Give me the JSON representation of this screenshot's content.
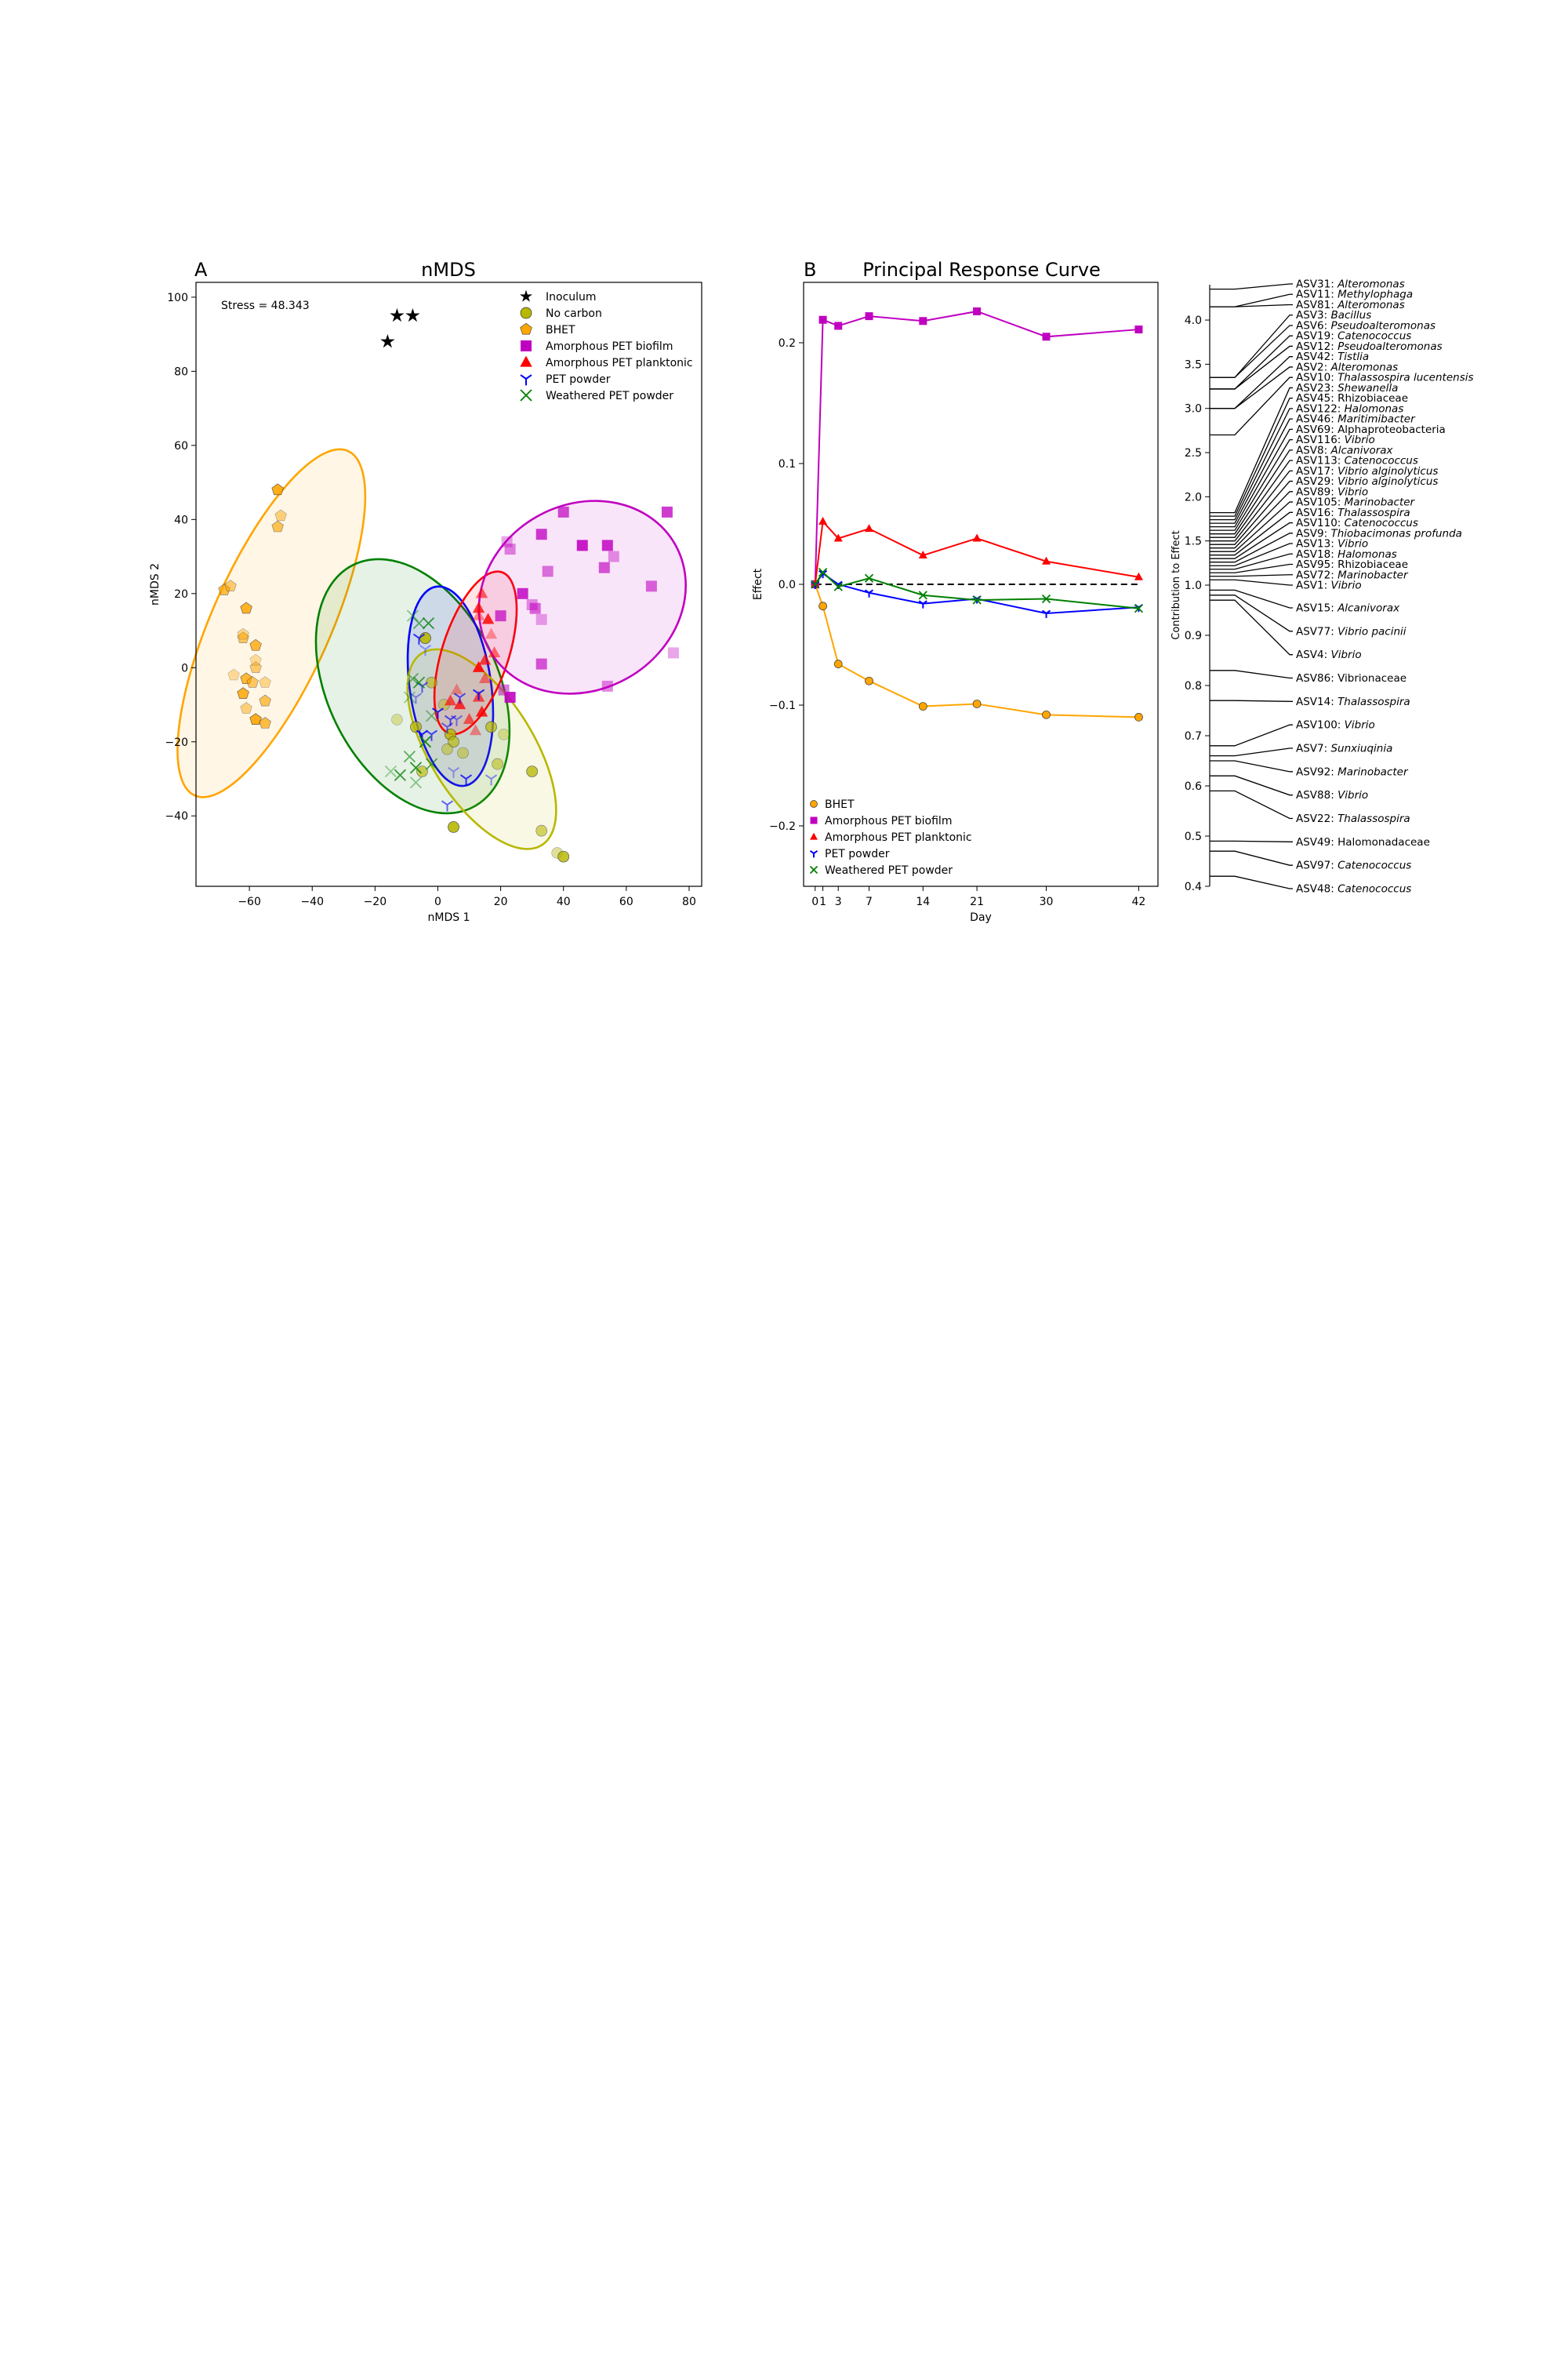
{
  "panel_a": {
    "letter": "A",
    "title": "nMDS",
    "stress": "Stress = 48.343",
    "legend": [
      {
        "label": "Inoculum",
        "marker": "star",
        "color": "#000000"
      },
      {
        "label": "No carbon",
        "marker": "circle",
        "color": "#b8b800"
      },
      {
        "label": "BHET",
        "marker": "pentagon",
        "color": "#ffa500"
      },
      {
        "label": "Amorphous PET biofilm",
        "marker": "square",
        "color": "#c000c0"
      },
      {
        "label": "Amorphous PET planktonic",
        "marker": "triangle",
        "color": "#ff0000"
      },
      {
        "label": "PET powder",
        "marker": "tri",
        "color": "#0000ff"
      },
      {
        "label": "Weathered PET powder",
        "marker": "x",
        "color": "#008000"
      }
    ]
  },
  "panel_b": {
    "letter": "B",
    "title": "Principal Response Curve",
    "legend": [
      {
        "label": "BHET",
        "marker": "circle",
        "color": "#ffa500"
      },
      {
        "label": "Amorphous PET biofilm",
        "marker": "square",
        "color": "#c000c0"
      },
      {
        "label": "Amorphous PET planktonic",
        "marker": "triangle",
        "color": "#ff0000"
      },
      {
        "label": "PET powder",
        "marker": "tri",
        "color": "#0000ff"
      },
      {
        "label": "Weathered PET powder",
        "marker": "x",
        "color": "#008000"
      }
    ]
  },
  "panel_c": {
    "ylabel": "Contribution to Effect",
    "ylim": [
      0.4,
      4.4
    ],
    "yticks": [
      0.4,
      0.5,
      0.6,
      0.7,
      0.8,
      0.9,
      1.0,
      1.5,
      2.0,
      2.5,
      3.0,
      3.5,
      4.0
    ],
    "note": "broken axis: lower segment 0.4-1.0, upper segment 1.0-4.4",
    "taxa": [
      {
        "asv": "ASV31:",
        "name": "Alteromonas",
        "italic": true,
        "value": 4.35
      },
      {
        "asv": "ASV11:",
        "name": "Methylophaga",
        "italic": true,
        "value": 4.15
      },
      {
        "asv": "ASV81:",
        "name": "Alteromonas",
        "italic": true,
        "value": 4.15
      },
      {
        "asv": "ASV3:",
        "name": "Bacillus",
        "italic": true,
        "value": 3.35
      },
      {
        "asv": "ASV6:",
        "name": "Pseudoalteromonas",
        "italic": true,
        "value": 3.35
      },
      {
        "asv": "ASV19:",
        "name": "Catenococcus",
        "italic": true,
        "value": 3.22
      },
      {
        "asv": "ASV12:",
        "name": "Pseudoalteromonas",
        "italic": true,
        "value": 3.22
      },
      {
        "asv": "ASV42:",
        "name": "Tistlia",
        "italic": true,
        "value": 3.0
      },
      {
        "asv": "ASV2:",
        "name": "Alteromonas",
        "italic": true,
        "value": 3.0
      },
      {
        "asv": "ASV10:",
        "name": "Thalassospira lucentensis",
        "italic": true,
        "value": 2.7
      },
      {
        "asv": "ASV23:",
        "name": "Shewanella",
        "italic": true,
        "value": 1.82
      },
      {
        "asv": "ASV45:",
        "name": "Rhizobiaceae",
        "italic": false,
        "value": 1.78
      },
      {
        "asv": "ASV122:",
        "name": "Halomonas",
        "italic": true,
        "value": 1.74
      },
      {
        "asv": "ASV46:",
        "name": "Maritimibacter",
        "italic": true,
        "value": 1.7
      },
      {
        "asv": "ASV69:",
        "name": "Alphaproteobacteria",
        "italic": false,
        "value": 1.66
      },
      {
        "asv": "ASV116:",
        "name": "Vibrio",
        "italic": true,
        "value": 1.62
      },
      {
        "asv": "ASV8:",
        "name": "Alcanivorax",
        "italic": true,
        "value": 1.58
      },
      {
        "asv": "ASV113:",
        "name": "Catenococcus",
        "italic": true,
        "value": 1.54
      },
      {
        "asv": "ASV17:",
        "name": "Vibrio alginolyticus",
        "italic": true,
        "value": 1.5
      },
      {
        "asv": "ASV29:",
        "name": "Vibrio alginolyticus",
        "italic": true,
        "value": 1.46
      },
      {
        "asv": "ASV89:",
        "name": "Vibrio",
        "italic": true,
        "value": 1.42
      },
      {
        "asv": "ASV105:",
        "name": "Marinobacter",
        "italic": true,
        "value": 1.38
      },
      {
        "asv": "ASV16:",
        "name": "Thalassospira",
        "italic": true,
        "value": 1.34
      },
      {
        "asv": "ASV110:",
        "name": "Catenococcus",
        "italic": true,
        "value": 1.3
      },
      {
        "asv": "ASV9:",
        "name": "Thiobacimonas profunda",
        "italic": true,
        "value": 1.26
      },
      {
        "asv": "ASV13:",
        "name": "Vibrio",
        "italic": true,
        "value": 1.22
      },
      {
        "asv": "ASV18:",
        "name": "Halomonas",
        "italic": true,
        "value": 1.18
      },
      {
        "asv": "ASV95:",
        "name": "Rhizobiaceae",
        "italic": false,
        "value": 1.14
      },
      {
        "asv": "ASV72:",
        "name": "Marinobacter",
        "italic": true,
        "value": 1.1
      },
      {
        "asv": "ASV1:",
        "name": "Vibrio",
        "italic": true,
        "value": 1.06
      },
      {
        "asv": "ASV15:",
        "name": "Alcanivorax",
        "italic": true,
        "value": 0.99
      },
      {
        "asv": "ASV77:",
        "name": "Vibrio pacinii",
        "italic": true,
        "value": 0.98
      },
      {
        "asv": "ASV4:",
        "name": "Vibrio",
        "italic": true,
        "value": 0.97
      },
      {
        "asv": "ASV86:",
        "name": "Vibrionaceae",
        "italic": false,
        "value": 0.83
      },
      {
        "asv": "ASV14:",
        "name": "Thalassospira",
        "italic": true,
        "value": 0.77
      },
      {
        "asv": "ASV100:",
        "name": "Vibrio",
        "italic": true,
        "value": 0.68
      },
      {
        "asv": "ASV7:",
        "name": "Sunxiuqinia",
        "italic": true,
        "value": 0.66
      },
      {
        "asv": "ASV92:",
        "name": "Marinobacter",
        "italic": true,
        "value": 0.65
      },
      {
        "asv": "ASV88:",
        "name": "Vibrio",
        "italic": true,
        "value": 0.62
      },
      {
        "asv": "ASV22:",
        "name": "Thalassospira",
        "italic": true,
        "value": 0.59
      },
      {
        "asv": "ASV49:",
        "name": "Halomonadaceae",
        "italic": false,
        "value": 0.49
      },
      {
        "asv": "ASV97:",
        "name": "Catenococcus",
        "italic": true,
        "value": 0.47
      },
      {
        "asv": "ASV48:",
        "name": "Catenococcus",
        "italic": true,
        "value": 0.42
      }
    ]
  },
  "chart_data": [
    {
      "type": "scatter",
      "title": "nMDS",
      "xlabel": "nMDS 1",
      "ylabel": "nMDS 2",
      "xlim": [
        -77,
        84
      ],
      "ylim": [
        -59,
        104
      ],
      "xticks": [
        -60,
        -40,
        -20,
        0,
        20,
        40,
        60,
        80
      ],
      "yticks": [
        -40,
        -20,
        0,
        20,
        40,
        60,
        80,
        100
      ],
      "annotation": "Stress = 48.343",
      "series": [
        {
          "name": "Inoculum",
          "color": "#000000",
          "marker": "star",
          "points": [
            [
              -13,
              95
            ],
            [
              -8,
              95
            ],
            [
              -16,
              88
            ]
          ]
        },
        {
          "name": "No carbon",
          "color": "#b8b800",
          "marker": "circle",
          "points": [
            [
              -13,
              -14
            ],
            [
              -7,
              -16
            ],
            [
              -2,
              -4
            ],
            [
              2,
              -10
            ],
            [
              4,
              -18
            ],
            [
              5,
              -20
            ],
            [
              3,
              -22
            ],
            [
              5,
              -43
            ],
            [
              17,
              -16
            ],
            [
              19,
              -26
            ],
            [
              21,
              -18
            ],
            [
              30,
              -28
            ],
            [
              33,
              -44
            ],
            [
              38,
              -50
            ],
            [
              40,
              -51
            ],
            [
              -5,
              -28
            ],
            [
              8,
              -23
            ],
            [
              -4,
              8
            ]
          ]
        },
        {
          "name": "BHET",
          "color": "#ffa500",
          "marker": "pentagon",
          "points": [
            [
              -65,
              -2
            ],
            [
              -61,
              -3
            ],
            [
              -59,
              -4
            ],
            [
              -55,
              -4
            ],
            [
              -62,
              -7
            ],
            [
              -55,
              -9
            ],
            [
              -61,
              -11
            ],
            [
              -58,
              -14
            ],
            [
              -55,
              -15
            ],
            [
              -58,
              0
            ],
            [
              -58,
              2
            ],
            [
              -58,
              6
            ],
            [
              -62,
              8
            ],
            [
              -62,
              9
            ],
            [
              -61,
              16
            ],
            [
              -51,
              38
            ],
            [
              -50,
              41
            ],
            [
              -51,
              48
            ],
            [
              -68,
              21
            ],
            [
              -66,
              22
            ]
          ]
        },
        {
          "name": "Amorphous PET biofilm",
          "color": "#c000c0",
          "marker": "square",
          "points": [
            [
              75,
              4
            ],
            [
              73,
              42
            ],
            [
              68,
              22
            ],
            [
              56,
              30
            ],
            [
              54,
              33
            ],
            [
              53,
              27
            ],
            [
              54,
              -5
            ],
            [
              46,
              33
            ],
            [
              40,
              42
            ],
            [
              35,
              26
            ],
            [
              33,
              13
            ],
            [
              33,
              36
            ],
            [
              31,
              16
            ],
            [
              30,
              17
            ],
            [
              27,
              20
            ],
            [
              33,
              1
            ],
            [
              23,
              32
            ],
            [
              23,
              -8
            ],
            [
              20,
              14
            ],
            [
              21,
              -6
            ],
            [
              22,
              34
            ]
          ]
        },
        {
          "name": "Amorphous PET planktonic",
          "color": "#ff0000",
          "marker": "triangle",
          "points": [
            [
              6,
              -6
            ],
            [
              7,
              -10
            ],
            [
              10,
              -14
            ],
            [
              12,
              -17
            ],
            [
              14,
              -12
            ],
            [
              13,
              -8
            ],
            [
              15,
              -3
            ],
            [
              13,
              0
            ],
            [
              15,
              2
            ],
            [
              18,
              4
            ],
            [
              17,
              9
            ],
            [
              13,
              16
            ],
            [
              14,
              20
            ],
            [
              13,
              14
            ],
            [
              16,
              13
            ],
            [
              4,
              -9
            ]
          ]
        },
        {
          "name": "PET powder",
          "color": "#0000ff",
          "marker": "tri",
          "points": [
            [
              -4,
              5
            ],
            [
              -6,
              8
            ],
            [
              -5,
              -5
            ],
            [
              -7,
              -8
            ],
            [
              0,
              -12
            ],
            [
              4,
              -14
            ],
            [
              6,
              -14
            ],
            [
              -5,
              -18
            ],
            [
              -2,
              -18
            ],
            [
              3,
              -16
            ],
            [
              5,
              -28
            ],
            [
              9,
              -30
            ],
            [
              3,
              -37
            ],
            [
              17,
              -30
            ],
            [
              13,
              -7
            ],
            [
              7,
              -8
            ]
          ]
        },
        {
          "name": "Weathered PET powder",
          "color": "#008000",
          "marker": "x",
          "points": [
            [
              -15,
              -28
            ],
            [
              -12,
              -29
            ],
            [
              -9,
              -24
            ],
            [
              -7,
              -31
            ],
            [
              -7,
              -27
            ],
            [
              -2,
              -26
            ],
            [
              -2,
              -13
            ],
            [
              -4,
              -20
            ],
            [
              -6,
              -4
            ],
            [
              -8,
              -3
            ],
            [
              -9,
              -8
            ],
            [
              -3,
              12
            ],
            [
              -6,
              12
            ],
            [
              -8,
              14
            ]
          ]
        }
      ],
      "ellipses": [
        {
          "group": "BHET",
          "cx": -53,
          "cy": 12,
          "a": 60,
          "b": 16,
          "angle_deg": 66,
          "color": "#ffa500"
        },
        {
          "group": "Weathered PET powder",
          "cx": -8,
          "cy": -5,
          "a": 43,
          "b": 23,
          "angle_deg": -64,
          "color": "#008000"
        },
        {
          "group": "PET powder",
          "cx": 4,
          "cy": -5,
          "a": 32,
          "b": 11,
          "angle_deg": -82,
          "color": "#0000ff"
        },
        {
          "group": "No carbon",
          "cx": 14,
          "cy": -22,
          "a": 36,
          "b": 14,
          "angle_deg": -58,
          "color": "#b8b800"
        },
        {
          "group": "Amorphous PET planktonic",
          "cx": 12,
          "cy": 4,
          "a": 27,
          "b": 9,
          "angle_deg": 72,
          "color": "#ff0000"
        },
        {
          "group": "Amorphous PET biofilm",
          "cx": 46,
          "cy": 19,
          "a": 34,
          "b": 25,
          "angle_deg": 30,
          "color": "#c000c0"
        }
      ],
      "legend_position": "top-right"
    },
    {
      "type": "line",
      "title": "Principal Response Curve",
      "xlabel": "Day",
      "ylabel": "Effect",
      "x": [
        0,
        1,
        3,
        7,
        14,
        21,
        30,
        42
      ],
      "xticks": [
        0,
        1,
        3,
        7,
        14,
        21,
        30,
        42
      ],
      "xlim": [
        -1.5,
        44.5
      ],
      "ylim": [
        -0.25,
        0.25
      ],
      "yticks": [
        -0.2,
        -0.1,
        0.0,
        0.1,
        0.2
      ],
      "reference_line": {
        "y": 0,
        "style": "dashed"
      },
      "series": [
        {
          "name": "BHET",
          "color": "#ffa500",
          "marker": "circle",
          "values": [
            0.0,
            -0.018,
            -0.066,
            -0.08,
            -0.101,
            -0.099,
            -0.108,
            -0.11
          ]
        },
        {
          "name": "Amorphous PET biofilm",
          "color": "#c000c0",
          "marker": "square",
          "values": [
            0.0,
            0.219,
            0.214,
            0.222,
            0.218,
            0.226,
            0.205,
            0.211
          ]
        },
        {
          "name": "Amorphous PET planktonic",
          "color": "#ff0000",
          "marker": "triangle",
          "values": [
            0.0,
            0.052,
            0.038,
            0.046,
            0.024,
            0.038,
            0.019,
            0.006
          ]
        },
        {
          "name": "PET powder",
          "color": "#0000ff",
          "marker": "tri",
          "values": [
            0.0,
            0.009,
            0.0,
            -0.007,
            -0.016,
            -0.012,
            -0.024,
            -0.019
          ]
        },
        {
          "name": "Weathered PET powder",
          "color": "#008000",
          "marker": "x",
          "values": [
            0.0,
            0.01,
            -0.002,
            0.005,
            -0.009,
            -0.013,
            -0.012,
            -0.02
          ]
        }
      ],
      "legend_position": "bottom-left"
    }
  ]
}
